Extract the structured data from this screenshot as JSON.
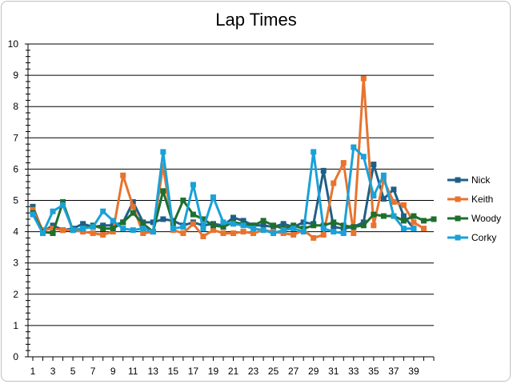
{
  "chart_data": {
    "type": "line",
    "title": "Lap Times",
    "xlabel": "",
    "ylabel": "",
    "ylim": [
      0,
      10
    ],
    "yticks": [
      0,
      1,
      2,
      3,
      4,
      5,
      6,
      7,
      8,
      9,
      10
    ],
    "xlim": [
      1,
      41
    ],
    "xtick_labels": [
      1,
      3,
      5,
      7,
      9,
      11,
      13,
      15,
      17,
      19,
      21,
      23,
      25,
      27,
      29,
      31,
      33,
      35,
      37,
      39
    ],
    "grid": "horizontal",
    "legend_position": "right",
    "series": [
      {
        "name": "Nick",
        "color": "#1f5f87",
        "values": [
          4.8,
          4.0,
          4.2,
          4.05,
          4.1,
          4.25,
          4.15,
          4.2,
          4.2,
          4.3,
          4.95,
          4.3,
          4.3,
          4.4,
          4.35,
          4.2,
          4.3,
          4.2,
          4.25,
          4.2,
          4.45,
          4.35,
          4.2,
          4.2,
          4.15,
          4.25,
          4.15,
          4.3,
          4.25,
          5.95,
          4.15,
          4.1,
          4.15,
          4.3,
          6.15,
          5.05,
          5.35,
          4.5,
          4.1
        ]
      },
      {
        "name": "Keith",
        "color": "#e8732e",
        "values": [
          4.7,
          4.05,
          4.1,
          4.05,
          4.05,
          4.0,
          3.95,
          3.9,
          4.0,
          5.8,
          4.8,
          3.95,
          4.0,
          6.1,
          4.05,
          3.95,
          4.25,
          3.85,
          4.05,
          3.95,
          3.95,
          4.0,
          3.95,
          4.05,
          4.0,
          3.95,
          3.9,
          4.05,
          3.8,
          3.9,
          5.55,
          6.2,
          3.95,
          8.9,
          4.2,
          5.65,
          4.95,
          4.85,
          4.3,
          4.1
        ]
      },
      {
        "name": "Woody",
        "color": "#1e6f2e",
        "values": [
          4.6,
          4.0,
          3.95,
          4.95,
          4.05,
          4.1,
          4.2,
          4.1,
          4.1,
          4.3,
          4.6,
          4.25,
          4.0,
          5.3,
          4.25,
          5.0,
          4.55,
          4.4,
          4.2,
          4.15,
          4.3,
          4.25,
          4.2,
          4.35,
          4.2,
          4.1,
          4.2,
          4.1,
          4.2,
          4.2,
          4.3,
          4.2,
          4.15,
          4.2,
          4.55,
          4.5,
          4.5,
          4.35,
          4.5,
          4.35,
          4.4
        ]
      },
      {
        "name": "Corky",
        "color": "#1aa1d8",
        "values": [
          4.55,
          3.95,
          4.65,
          4.85,
          4.05,
          4.1,
          4.15,
          4.65,
          4.35,
          4.1,
          4.05,
          4.1,
          4.0,
          6.55,
          4.1,
          4.15,
          5.5,
          4.1,
          5.1,
          4.3,
          4.25,
          4.2,
          4.1,
          4.05,
          3.95,
          4.05,
          4.1,
          4.0,
          6.55,
          4.1,
          4.0,
          3.95,
          6.7,
          6.4,
          5.15,
          5.8,
          4.5,
          4.1,
          4.1
        ]
      }
    ]
  }
}
